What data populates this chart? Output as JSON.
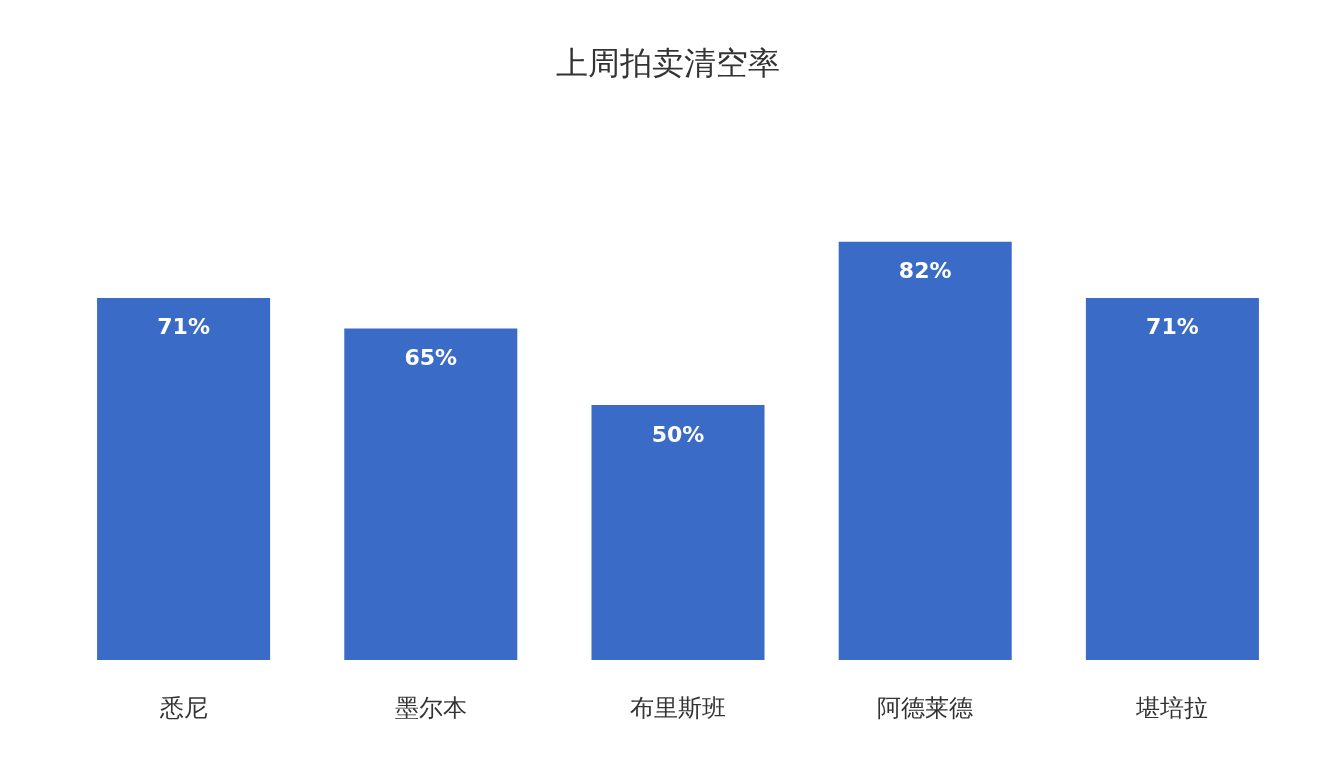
{
  "chart_data": {
    "type": "bar",
    "title": "上周拍卖清空率",
    "categories": [
      "悉尼",
      "墨尔本",
      "布里斯班",
      "阿德莱德",
      "堪培拉"
    ],
    "values": [
      71,
      65,
      50,
      82,
      71
    ],
    "color": "#3a6bc6",
    "value_labels": [
      "71%",
      "65%",
      "50%",
      "82%",
      "71%"
    ]
  }
}
